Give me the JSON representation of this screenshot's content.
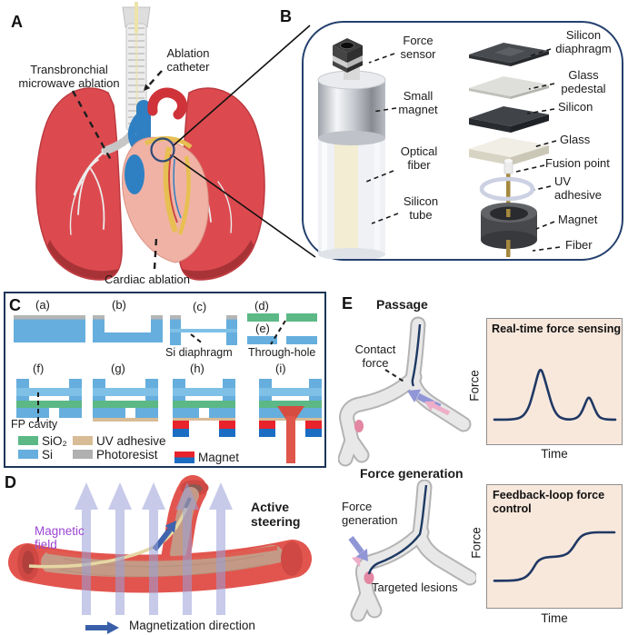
{
  "colors": {
    "panel_border_navy": "#24406e",
    "chart_bg_peach": "#f8e8dc",
    "curve_navy": "#1f3864",
    "si_blue": "#66aedd",
    "sio2_green": "#5cb885",
    "uv_tan": "#d8bc96",
    "photoresist_gray": "#b0b0b0",
    "magnet_red": "#e8232b",
    "magnet_blue": "#1a6dc2",
    "field_purple": "#9c45d2",
    "vessel_red": "#e2554e",
    "lung_red": "#dc4a4f"
  },
  "panelA": {
    "tag": "A",
    "labels": {
      "transbronchial": "Transbronchial\nmicrowave ablation",
      "ablation_catheter": "Ablation\ncatheter",
      "cardiac_ablation": "Cardiac ablation"
    }
  },
  "panelB": {
    "tag": "B",
    "device_labels": {
      "force_sensor": "Force\nsensor",
      "small_magnet": "Small\nmagnet",
      "optical_fiber": "Optical\nfiber",
      "silicon_tube": "Silicon\ntube"
    },
    "stack_labels": {
      "silicon_diaphragm": "Silicon\ndiaphragm",
      "glass_pedestal": "Glass\npedestal",
      "silicon": "Silicon",
      "glass": "Glass",
      "fusion_point": "Fusion point",
      "uv_adhesive": "UV\nadhesive",
      "magnet": "Magnet",
      "fiber": "Fiber"
    }
  },
  "panelC": {
    "tag": "C",
    "steps": [
      "(a)",
      "(b)",
      "(c)",
      "(d)",
      "(e)",
      "(f)",
      "(g)",
      "(h)",
      "(i)"
    ],
    "annotations": {
      "si_diaphragm": "Si diaphragm",
      "through_hole": "Through-hole",
      "fp_cavity": "FP cavity"
    },
    "legend": [
      {
        "label": "SiO₂",
        "color": "#5cb885"
      },
      {
        "label": "Si",
        "color": "#66aedd"
      },
      {
        "label": "UV adhesive",
        "color": "#d8bc96"
      },
      {
        "label": "Photoresist",
        "color": "#b0b0b0"
      },
      {
        "label": "Magnet",
        "color_top": "#e8232b",
        "color_bottom": "#1a6dc2"
      }
    ]
  },
  "panelD": {
    "tag": "D",
    "labels": {
      "magnetic_field": "Magnetic\nfield",
      "active_steering": "Active\nsteering",
      "magnetization_direction": "Magnetization direction"
    }
  },
  "panelE": {
    "tag": "E",
    "passage_title": "Passage",
    "force_generation_title": "Force generation",
    "labels": {
      "contact_force": "Contact\nforce",
      "force_generation": "Force\ngeneration",
      "targeted_lesions": "Targeted lesions"
    }
  },
  "chart_data": [
    {
      "type": "line",
      "title": "Real-time force sensing",
      "xlabel": "Time",
      "ylabel": "Force",
      "x_range": [
        0,
        1
      ],
      "y_range": [
        0,
        1
      ],
      "description": "Qualitative force trace with a large peak followed by a smaller peak",
      "points": [
        [
          0,
          0.02
        ],
        [
          0.06,
          0.02
        ],
        [
          0.12,
          0.02
        ],
        [
          0.17,
          0.03
        ],
        [
          0.21,
          0.05
        ],
        [
          0.25,
          0.12
        ],
        [
          0.29,
          0.28
        ],
        [
          0.33,
          0.62
        ],
        [
          0.36,
          0.9
        ],
        [
          0.38,
          1.0
        ],
        [
          0.4,
          0.93
        ],
        [
          0.44,
          0.6
        ],
        [
          0.48,
          0.27
        ],
        [
          0.52,
          0.1
        ],
        [
          0.56,
          0.04
        ],
        [
          0.61,
          0.02
        ],
        [
          0.66,
          0.03
        ],
        [
          0.7,
          0.08
        ],
        [
          0.73,
          0.2
        ],
        [
          0.76,
          0.38
        ],
        [
          0.78,
          0.46
        ],
        [
          0.8,
          0.4
        ],
        [
          0.83,
          0.22
        ],
        [
          0.86,
          0.08
        ],
        [
          0.9,
          0.03
        ],
        [
          0.95,
          0.02
        ],
        [
          1,
          0.02
        ]
      ]
    },
    {
      "type": "line",
      "title": "Feedback-loop force control",
      "xlabel": "Time",
      "ylabel": "Force",
      "x_range": [
        0,
        1
      ],
      "y_range": [
        0,
        1
      ],
      "description": "Qualitative staircase force trace with two sigmoidal steps",
      "points": [
        [
          0,
          0.03
        ],
        [
          0.1,
          0.03
        ],
        [
          0.17,
          0.04
        ],
        [
          0.22,
          0.06
        ],
        [
          0.26,
          0.1
        ],
        [
          0.3,
          0.19
        ],
        [
          0.33,
          0.31
        ],
        [
          0.36,
          0.42
        ],
        [
          0.39,
          0.47
        ],
        [
          0.43,
          0.5
        ],
        [
          0.49,
          0.51
        ],
        [
          0.54,
          0.52
        ],
        [
          0.58,
          0.54
        ],
        [
          0.62,
          0.59
        ],
        [
          0.65,
          0.68
        ],
        [
          0.68,
          0.79
        ],
        [
          0.71,
          0.89
        ],
        [
          0.74,
          0.95
        ],
        [
          0.78,
          0.98
        ],
        [
          0.83,
          1.0
        ],
        [
          0.9,
          1.0
        ],
        [
          1,
          1.0
        ]
      ]
    }
  ]
}
